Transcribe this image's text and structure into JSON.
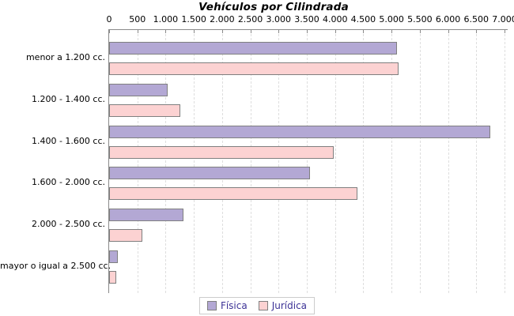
{
  "chart_data": {
    "type": "bar",
    "orientation": "horizontal",
    "title": "Vehículos por Cilindrada",
    "categories": [
      "menor a 1.200 cc.",
      "1.200 - 1.400 cc.",
      "1.400 - 1.600 cc.",
      "1.600 - 2.000 cc.",
      "2.000 - 2.500 cc.",
      "mayor o igual a 2.500 cc."
    ],
    "series": [
      {
        "name": "Física",
        "color": "#b3a8d4",
        "values": [
          5100,
          1040,
          6750,
          3560,
          1320,
          150
        ]
      },
      {
        "name": "Jurídica",
        "color": "#fcd2d2",
        "values": [
          5130,
          1260,
          3970,
          4400,
          590,
          125
        ]
      }
    ],
    "xlim": [
      0,
      7000
    ],
    "x_ticks": [
      0,
      500,
      1000,
      1500,
      2000,
      2500,
      3000,
      3500,
      4000,
      4500,
      5000,
      5500,
      6000,
      6500,
      7000
    ],
    "x_tick_labels": [
      "0",
      "500",
      "1.000",
      "1.500",
      "2.000",
      "2.500",
      "3.000",
      "3.500",
      "4.000",
      "4.500",
      "5.000",
      "5.500",
      "6.000",
      "6.500",
      "7.000"
    ],
    "grid": "vertical-dashed",
    "legend_position": "bottom",
    "axis_position": "top"
  },
  "colors": {
    "background": "#ffffff",
    "bar_border": "#7f7f7f",
    "gridline": "#dedede",
    "axis_line": "#8a8a8a",
    "legend_text": "#3c3296",
    "legend_border": "#cccccc",
    "title_text": "#000000"
  }
}
